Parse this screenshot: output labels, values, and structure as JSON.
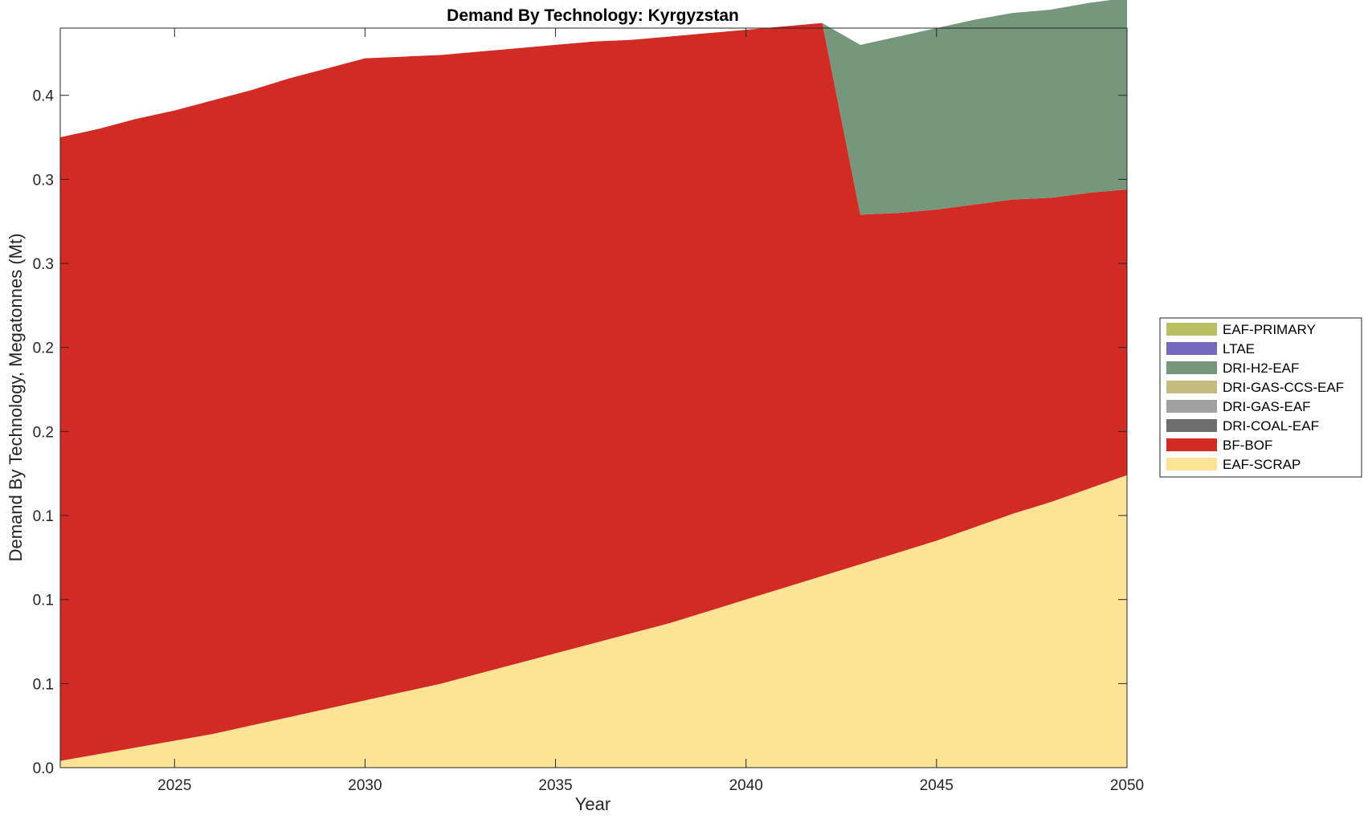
{
  "chart_data": {
    "type": "area",
    "stacked": true,
    "title": "Demand By Technology: Kyrgyzstan",
    "xlabel": "Year",
    "ylabel": "Demand By Technology, Megatonnes (Mt)",
    "xlim": [
      2022,
      2050
    ],
    "ylim": [
      0,
      0.44
    ],
    "x_ticks": [
      2025,
      2030,
      2035,
      2040,
      2045,
      2050
    ],
    "x_tick_labels": [
      "2025",
      "2030",
      "2035",
      "2040",
      "2045",
      "2050"
    ],
    "y_ticks": [
      0,
      0.05,
      0.1,
      0.15,
      0.2,
      0.25,
      0.3,
      0.35,
      0.4
    ],
    "y_tick_labels": [
      "0.0",
      "0.1",
      "0.1",
      "0.1",
      "0.2",
      "0.2",
      "0.3",
      "0.3",
      "0.4"
    ],
    "grid": false,
    "legend_position": "right",
    "legend_order": [
      "EAF-PRIMARY",
      "LTAE",
      "DRI-H2-EAF",
      "DRI-GAS-CCS-EAF",
      "DRI-GAS-EAF",
      "DRI-COAL-EAF",
      "BF-BOF",
      "EAF-SCRAP"
    ],
    "x": [
      2022,
      2023,
      2024,
      2025,
      2026,
      2027,
      2028,
      2029,
      2030,
      2031,
      2032,
      2033,
      2034,
      2035,
      2036,
      2037,
      2038,
      2039,
      2040,
      2041,
      2042,
      2043,
      2044,
      2045,
      2046,
      2047,
      2048,
      2049,
      2050
    ],
    "series": [
      {
        "name": "EAF-SCRAP",
        "color": "#fde395",
        "values": [
          0.004,
          0.008,
          0.012,
          0.016,
          0.02,
          0.025,
          0.03,
          0.035,
          0.04,
          0.045,
          0.05,
          0.056,
          0.062,
          0.068,
          0.074,
          0.08,
          0.086,
          0.093,
          0.1,
          0.107,
          0.114,
          0.121,
          0.128,
          0.135,
          0.143,
          0.151,
          0.158,
          0.166,
          0.174
        ]
      },
      {
        "name": "BF-BOF",
        "color": "#d12b24",
        "values": [
          0.371,
          0.372,
          0.374,
          0.375,
          0.377,
          0.378,
          0.38,
          0.381,
          0.382,
          0.378,
          0.374,
          0.37,
          0.366,
          0.362,
          0.358,
          0.353,
          0.349,
          0.344,
          0.339,
          0.334,
          0.329,
          0.208,
          0.202,
          0.197,
          0.192,
          0.187,
          0.181,
          0.176,
          0.17
        ]
      },
      {
        "name": "DRI-COAL-EAF",
        "color": "#6e6e6e",
        "values": [
          0,
          0,
          0,
          0,
          0,
          0,
          0,
          0,
          0,
          0,
          0,
          0,
          0,
          0,
          0,
          0,
          0,
          0,
          0,
          0,
          0,
          0,
          0,
          0,
          0,
          0,
          0,
          0,
          0
        ]
      },
      {
        "name": "DRI-GAS-EAF",
        "color": "#a0a0a0",
        "values": [
          0,
          0,
          0,
          0,
          0,
          0,
          0,
          0,
          0,
          0,
          0,
          0,
          0,
          0,
          0,
          0,
          0,
          0,
          0,
          0,
          0,
          0,
          0,
          0,
          0,
          0,
          0,
          0,
          0
        ]
      },
      {
        "name": "DRI-GAS-CCS-EAF",
        "color": "#c4bb7e",
        "values": [
          0,
          0,
          0,
          0,
          0,
          0,
          0,
          0,
          0,
          0,
          0,
          0,
          0,
          0,
          0,
          0,
          0,
          0,
          0,
          0,
          0,
          0,
          0,
          0,
          0,
          0,
          0,
          0,
          0
        ]
      },
      {
        "name": "DRI-H2-EAF",
        "color": "#77977d",
        "values": [
          0,
          0,
          0,
          0,
          0,
          0,
          0,
          0,
          0,
          0,
          0,
          0,
          0,
          0,
          0,
          0,
          0,
          0,
          0,
          0,
          0.0,
          0.101,
          0.105,
          0.108,
          0.11,
          0.111,
          0.112,
          0.113,
          0.114
        ]
      },
      {
        "name": "LTAE",
        "color": "#7569bd",
        "values": [
          0,
          0,
          0,
          0,
          0,
          0,
          0,
          0,
          0,
          0,
          0,
          0,
          0,
          0,
          0,
          0,
          0,
          0,
          0,
          0,
          0,
          0,
          0,
          0,
          0,
          0,
          0,
          0,
          0
        ]
      },
      {
        "name": "EAF-PRIMARY",
        "color": "#b9c064",
        "values": [
          0,
          0,
          0,
          0,
          0,
          0,
          0,
          0,
          0,
          0,
          0,
          0,
          0,
          0,
          0,
          0,
          0,
          0,
          0,
          0,
          0,
          0,
          0,
          0,
          0,
          0,
          0,
          0,
          0
        ]
      }
    ]
  }
}
